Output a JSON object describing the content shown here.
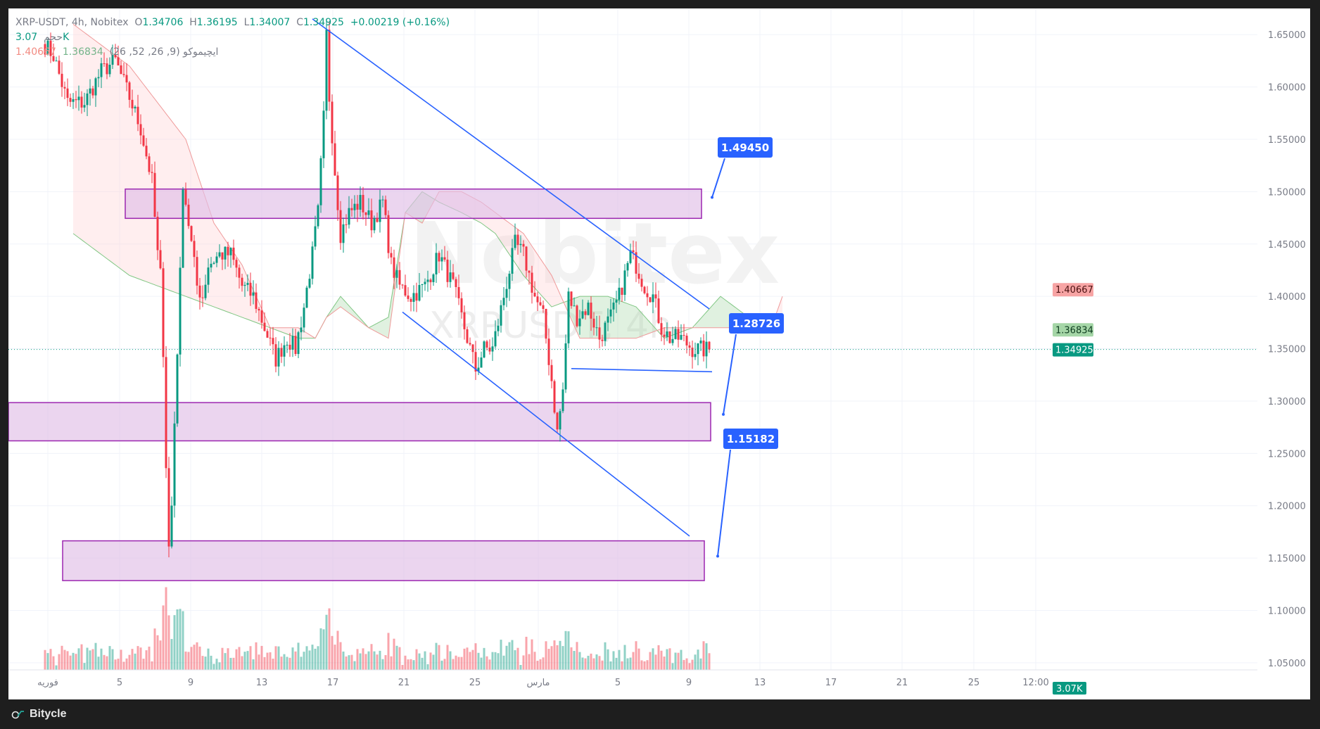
{
  "legend": {
    "symbol_line": "XRP-USDT, 4h, Nobitex",
    "o_label": "O",
    "o": "1.34706",
    "h_label": "H",
    "h": "1.36195",
    "l_label": "L",
    "l": "1.34007",
    "c_label": "C",
    "c": "1.34925",
    "change": "+0.00219 (+0.16%)",
    "volume_label": "حجم",
    "volume_value": "3.07K",
    "ichimoku_label": "ایچیموکو (9, 26, 52, 26)",
    "ichimoku_v1": "1.36834",
    "ichimoku_v2": "1.40667"
  },
  "watermark": {
    "logo": "Nobitex",
    "line": "XRPUSDT, 4h"
  },
  "footer": {
    "brand": "Bitycle"
  },
  "colors": {
    "up": "#089981",
    "down": "#f23645",
    "zone_fill": "#e1bee7",
    "zone_border": "#9c27b0",
    "trend": "#2962ff",
    "kumo_green": "#a5d6a7",
    "kumo_red": "#ffcdd2",
    "callout": "#2962ff"
  },
  "chart_data": {
    "type": "candlestick",
    "symbol": "XRPUSDT",
    "timeframe": "4h",
    "ylim": [
      1.015,
      1.675
    ],
    "y_ticks": [
      "1.65000",
      "1.60000",
      "1.55000",
      "1.50000",
      "1.45000",
      "1.40000",
      "1.35000",
      "1.30000",
      "1.25000",
      "1.20000",
      "1.15000",
      "1.10000",
      "1.05000"
    ],
    "x_ticks": [
      "فوریه",
      "5",
      "9",
      "13",
      "17",
      "21",
      "25",
      "مارس",
      "5",
      "9",
      "13",
      "17",
      "21",
      "25",
      "12:00"
    ],
    "price_badges": [
      {
        "value": "1.40667",
        "color": "#f7a4a4",
        "text_color": "#4a1010"
      },
      {
        "value": "1.36834",
        "color": "#a5d6a7",
        "text_color": "#0d3b1e"
      },
      {
        "value": "1.34925",
        "color": "#089981",
        "text_color": "#ffffff"
      }
    ],
    "volume_badge": "3.07K",
    "last_price": 1.34925,
    "zones": [
      {
        "from": 1.4745,
        "to": 1.5025
      },
      {
        "from": 1.262,
        "to": 1.2985
      },
      {
        "from": 1.1285,
        "to": 1.1665
      }
    ],
    "callouts": [
      {
        "text": "1.49450",
        "price": 1.4945
      },
      {
        "text": "1.28726",
        "price": 1.28726
      },
      {
        "text": "1.15182",
        "price": 1.15182
      }
    ],
    "trendlines": [
      {
        "name": "upper-trendline",
        "from": {
          "x_index": 95,
          "y": 1.665
        },
        "to": {
          "x_index": 236,
          "y": 1.388
        }
      },
      {
        "name": "lower-trendline",
        "from": {
          "x_index": 127,
          "y": 1.385
        },
        "to": {
          "x_index": 229,
          "y": 1.171
        }
      },
      {
        "name": "base-line",
        "from": {
          "x_index": 187,
          "y": 1.331
        },
        "to": {
          "x_index": 237,
          "y": 1.328
        }
      }
    ],
    "anchors": [
      [
        0,
        1.64
      ],
      [
        3,
        1.63
      ],
      [
        8,
        1.585
      ],
      [
        14,
        1.585
      ],
      [
        20,
        1.615
      ],
      [
        25,
        1.625
      ],
      [
        30,
        1.59
      ],
      [
        34,
        1.56
      ],
      [
        38,
        1.51
      ],
      [
        40,
        1.44
      ],
      [
        41,
        1.42
      ],
      [
        42,
        1.35
      ],
      [
        43,
        1.24
      ],
      [
        44,
        1.16
      ],
      [
        45,
        1.2
      ],
      [
        46,
        1.28
      ],
      [
        47,
        1.35
      ],
      [
        48,
        1.42
      ],
      [
        49,
        1.51
      ],
      [
        50,
        1.49
      ],
      [
        52,
        1.45
      ],
      [
        54,
        1.41
      ],
      [
        56,
        1.4
      ],
      [
        58,
        1.43
      ],
      [
        62,
        1.44
      ],
      [
        66,
        1.44
      ],
      [
        70,
        1.41
      ],
      [
        74,
        1.4
      ],
      [
        78,
        1.37
      ],
      [
        82,
        1.34
      ],
      [
        86,
        1.36
      ],
      [
        89,
        1.35
      ],
      [
        92,
        1.39
      ],
      [
        95,
        1.44
      ],
      [
        97,
        1.48
      ],
      [
        99,
        1.57
      ],
      [
        100,
        1.65
      ],
      [
        101,
        1.59
      ],
      [
        103,
        1.52
      ],
      [
        105,
        1.46
      ],
      [
        108,
        1.48
      ],
      [
        112,
        1.49
      ],
      [
        116,
        1.47
      ],
      [
        120,
        1.49
      ],
      [
        123,
        1.43
      ],
      [
        126,
        1.41
      ],
      [
        130,
        1.4
      ],
      [
        135,
        1.41
      ],
      [
        140,
        1.44
      ],
      [
        145,
        1.41
      ],
      [
        150,
        1.36
      ],
      [
        153,
        1.33
      ],
      [
        156,
        1.35
      ],
      [
        159,
        1.35
      ],
      [
        163,
        1.4
      ],
      [
        167,
        1.45
      ],
      [
        170,
        1.44
      ],
      [
        174,
        1.4
      ],
      [
        177,
        1.38
      ],
      [
        180,
        1.32
      ],
      [
        182,
        1.27
      ],
      [
        184,
        1.31
      ],
      [
        186,
        1.4
      ],
      [
        189,
        1.38
      ],
      [
        193,
        1.39
      ],
      [
        197,
        1.36
      ],
      [
        201,
        1.38
      ],
      [
        204,
        1.4
      ],
      [
        206,
        1.42
      ],
      [
        208,
        1.44
      ],
      [
        210,
        1.43
      ],
      [
        213,
        1.41
      ],
      [
        216,
        1.4
      ],
      [
        219,
        1.37
      ],
      [
        222,
        1.36
      ],
      [
        226,
        1.36
      ],
      [
        230,
        1.35
      ],
      [
        234,
        1.349
      ],
      [
        236,
        1.349
      ]
    ],
    "n_candles": 237,
    "cloud": {
      "lead_offset": 26,
      "span_a": [
        [
          10,
          1.46
        ],
        [
          30,
          1.42
        ],
        [
          50,
          1.4
        ],
        [
          70,
          1.38
        ],
        [
          90,
          1.36
        ],
        [
          96,
          1.36
        ],
        [
          100,
          1.38
        ],
        [
          105,
          1.4
        ],
        [
          115,
          1.37
        ],
        [
          122,
          1.38
        ],
        [
          128,
          1.48
        ],
        [
          134,
          1.5
        ],
        [
          140,
          1.49
        ],
        [
          148,
          1.48
        ],
        [
          155,
          1.47
        ],
        [
          160,
          1.46
        ],
        [
          170,
          1.42
        ],
        [
          180,
          1.39
        ],
        [
          190,
          1.4
        ],
        [
          200,
          1.4
        ],
        [
          210,
          1.39
        ],
        [
          220,
          1.36
        ],
        [
          230,
          1.37
        ],
        [
          240,
          1.4
        ],
        [
          250,
          1.38
        ],
        [
          258,
          1.37
        ],
        [
          262,
          1.37
        ]
      ],
      "span_b": [
        [
          10,
          1.66
        ],
        [
          30,
          1.62
        ],
        [
          50,
          1.55
        ],
        [
          60,
          1.47
        ],
        [
          70,
          1.43
        ],
        [
          80,
          1.37
        ],
        [
          90,
          1.37
        ],
        [
          96,
          1.36
        ],
        [
          100,
          1.38
        ],
        [
          105,
          1.39
        ],
        [
          115,
          1.37
        ],
        [
          122,
          1.36
        ],
        [
          128,
          1.48
        ],
        [
          134,
          1.47
        ],
        [
          140,
          1.5
        ],
        [
          148,
          1.5
        ],
        [
          155,
          1.49
        ],
        [
          160,
          1.48
        ],
        [
          170,
          1.46
        ],
        [
          180,
          1.42
        ],
        [
          190,
          1.36
        ],
        [
          200,
          1.36
        ],
        [
          210,
          1.36
        ],
        [
          220,
          1.37
        ],
        [
          230,
          1.37
        ],
        [
          240,
          1.37
        ],
        [
          250,
          1.37
        ],
        [
          258,
          1.37
        ],
        [
          262,
          1.4
        ]
      ]
    }
  }
}
